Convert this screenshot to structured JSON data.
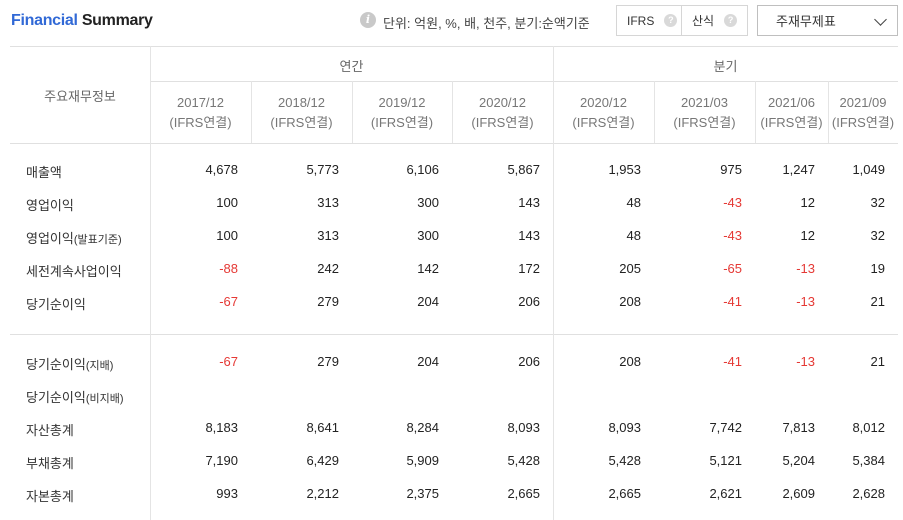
{
  "header": {
    "title_part1": "Financial",
    "title_part2": "Summary",
    "info_icon_glyph": "i",
    "unit_text": "단위: 억원, %, 배, 천주, 분기:순액기준",
    "ifrs_label": "IFRS",
    "calc_label": "산식",
    "help_glyph": "?",
    "select_value": "주재무제표"
  },
  "table": {
    "corner_label": "주요재무정보",
    "group_annual": "연간",
    "group_quarter": "분기",
    "periods": [
      {
        "date": "2017/12",
        "basis": "(IFRS연결)"
      },
      {
        "date": "2018/12",
        "basis": "(IFRS연결)"
      },
      {
        "date": "2019/12",
        "basis": "(IFRS연결)"
      },
      {
        "date": "2020/12",
        "basis": "(IFRS연결)"
      },
      {
        "date": "2020/12",
        "basis": "(IFRS연결)"
      },
      {
        "date": "2021/03",
        "basis": "(IFRS연결)"
      },
      {
        "date": "2021/06",
        "basis": "(IFRS연결)"
      },
      {
        "date": "2021/09",
        "basis": "(IFRS연결)"
      }
    ],
    "rows": [
      {
        "label": "매출액",
        "sub": "",
        "values": [
          "4,678",
          "5,773",
          "6,106",
          "5,867",
          "1,953",
          "975",
          "1,247",
          "1,049"
        ]
      },
      {
        "label": "영업이익",
        "sub": "",
        "values": [
          "100",
          "313",
          "300",
          "143",
          "48",
          "-43",
          "12",
          "32"
        ]
      },
      {
        "label": "영업이익",
        "sub": "(발표기준)",
        "values": [
          "100",
          "313",
          "300",
          "143",
          "48",
          "-43",
          "12",
          "32"
        ]
      },
      {
        "label": "세전계속사업이익",
        "sub": "",
        "values": [
          "-88",
          "242",
          "142",
          "172",
          "205",
          "-65",
          "-13",
          "19"
        ]
      },
      {
        "label": "당기순이익",
        "sub": "",
        "values": [
          "-67",
          "279",
          "204",
          "206",
          "208",
          "-41",
          "-13",
          "21"
        ]
      },
      {
        "label": "당기순이익",
        "sub": "(지배)",
        "values": [
          "-67",
          "279",
          "204",
          "206",
          "208",
          "-41",
          "-13",
          "21"
        ]
      },
      {
        "label": "당기순이익",
        "sub": "(비지배)",
        "values": [
          "",
          "",
          "",
          "",
          "",
          "",
          "",
          ""
        ]
      },
      {
        "label": "자산총계",
        "sub": "",
        "values": [
          "8,183",
          "8,641",
          "8,284",
          "8,093",
          "8,093",
          "7,742",
          "7,813",
          "8,012"
        ]
      },
      {
        "label": "부채총계",
        "sub": "",
        "values": [
          "7,190",
          "6,429",
          "5,909",
          "5,428",
          "5,428",
          "5,121",
          "5,204",
          "5,384"
        ]
      },
      {
        "label": "자본총계",
        "sub": "",
        "values": [
          "993",
          "2,212",
          "2,375",
          "2,665",
          "2,665",
          "2,621",
          "2,609",
          "2,628"
        ]
      }
    ]
  },
  "colors": {
    "title_accent": "#3169d6",
    "negative": "#e53935"
  }
}
